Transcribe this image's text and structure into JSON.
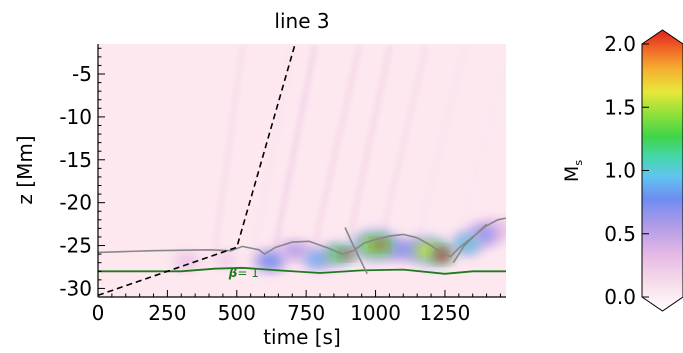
{
  "chart_data": {
    "type": "heatmap",
    "title": "line 3",
    "xlabel": "time [s]",
    "ylabel": "z [Mm]",
    "xlim": [
      0,
      1470
    ],
    "ylim": [
      -31,
      -1.5
    ],
    "xticks": [
      0,
      250,
      500,
      750,
      1000,
      1250
    ],
    "xtick_labels": [
      "0",
      "250",
      "500",
      "750",
      "1000",
      "1250"
    ],
    "yticks": [
      -5,
      -10,
      -15,
      -20,
      -25,
      -30
    ],
    "ytick_labels": [
      "-5",
      "-10",
      "-15",
      "-20",
      "-25",
      "-30"
    ],
    "colorbar": {
      "label": "M",
      "label_subscript": "s",
      "range": [
        0,
        2
      ],
      "ticks": [
        0,
        0.5,
        1,
        1.5,
        2
      ],
      "tick_labels": [
        "0.0",
        "0.5",
        "1.0",
        "1.5",
        "2.0"
      ],
      "extend": "both"
    },
    "annotations": [
      {
        "symbol": "β",
        "text": "= 1",
        "color": "#1f7a1f",
        "t": 500,
        "z": -28.1
      }
    ],
    "beta_contour": {
      "color": "#1f7a1f",
      "points": [
        [
          0,
          -28.0
        ],
        [
          300,
          -28.0
        ],
        [
          420,
          -27.7
        ],
        [
          520,
          -27.6
        ],
        [
          650,
          -27.9
        ],
        [
          800,
          -28.2
        ],
        [
          950,
          -27.9
        ],
        [
          1100,
          -27.8
        ],
        [
          1250,
          -28.3
        ],
        [
          1350,
          -28.0
        ],
        [
          1470,
          -28.0
        ]
      ]
    },
    "upper_contour": {
      "color": "#888888",
      "points": [
        [
          0,
          -25.8
        ],
        [
          200,
          -25.6
        ],
        [
          400,
          -25.5
        ],
        [
          480,
          -25.6
        ],
        [
          520,
          -25.1
        ],
        [
          580,
          -25.5
        ],
        [
          600,
          -26.0
        ],
        [
          640,
          -25.2
        ],
        [
          700,
          -24.6
        ],
        [
          760,
          -24.5
        ],
        [
          830,
          -25.3
        ],
        [
          880,
          -26.0
        ],
        [
          920,
          -25.6
        ],
        [
          960,
          -24.7
        ],
        [
          1000,
          -24.3
        ],
        [
          1050,
          -23.9
        ],
        [
          1100,
          -23.7
        ],
        [
          1150,
          -24.1
        ],
        [
          1200,
          -25.0
        ],
        [
          1240,
          -25.9
        ],
        [
          1270,
          -26.3
        ],
        [
          1300,
          -25.3
        ],
        [
          1350,
          -24.0
        ],
        [
          1400,
          -22.7
        ],
        [
          1440,
          -22.0
        ],
        [
          1470,
          -21.8
        ]
      ]
    },
    "dashed_line": {
      "points": [
        [
          0,
          -30.8
        ],
        [
          500,
          -25.2
        ],
        [
          710,
          -1.5
        ]
      ]
    },
    "gray_spikes": [
      {
        "points": [
          [
            890,
            -22.9
          ],
          [
            920,
            -25.0
          ],
          [
            970,
            -28.3
          ]
        ]
      },
      {
        "points": [
          [
            1400,
            -22.5
          ],
          [
            1320,
            -25.0
          ],
          [
            1280,
            -27.0
          ]
        ]
      }
    ],
    "hotspots": [
      {
        "t": 320,
        "z": -26.8,
        "value": 0.35,
        "rt": 40,
        "rz": 0.8
      },
      {
        "t": 460,
        "z": -26.6,
        "value": 0.3,
        "rt": 35,
        "rz": 0.8
      },
      {
        "t": 620,
        "z": -26.8,
        "value": 0.8,
        "rt": 45,
        "rz": 0.9
      },
      {
        "t": 710,
        "z": -25.6,
        "value": 0.6,
        "rt": 50,
        "rz": 0.8
      },
      {
        "t": 790,
        "z": -26.6,
        "value": 0.9,
        "rt": 40,
        "rz": 0.8
      },
      {
        "t": 860,
        "z": -26.0,
        "value": 1.3,
        "rt": 35,
        "rz": 0.8
      },
      {
        "t": 900,
        "z": -26.0,
        "value": 2.0,
        "rt": 20,
        "rz": 0.5
      },
      {
        "t": 1000,
        "z": -25.0,
        "value": 1.4,
        "rt": 60,
        "rz": 1.1
      },
      {
        "t": 1015,
        "z": -24.9,
        "value": 2.0,
        "rt": 22,
        "rz": 0.5
      },
      {
        "t": 1100,
        "z": -25.5,
        "value": 0.7,
        "rt": 55,
        "rz": 0.9
      },
      {
        "t": 1190,
        "z": -25.6,
        "value": 1.5,
        "rt": 50,
        "rz": 1.0
      },
      {
        "t": 1240,
        "z": -26.1,
        "value": 2.0,
        "rt": 30,
        "rz": 0.7
      },
      {
        "t": 1330,
        "z": -24.8,
        "value": 1.0,
        "rt": 40,
        "rz": 0.9
      },
      {
        "t": 1390,
        "z": -23.7,
        "value": 0.7,
        "rt": 45,
        "rz": 1.0
      },
      {
        "t": 1440,
        "z": -23.2,
        "value": 0.4,
        "rt": 40,
        "rz": 1.0
      }
    ],
    "streaks": [
      {
        "t0": 420,
        "z0": -26.0,
        "t1": 520,
        "z1": -2,
        "value": 0.18
      },
      {
        "t0": 560,
        "z0": -26.0,
        "t1": 700,
        "z1": -2,
        "value": 0.15
      },
      {
        "t0": 640,
        "z0": -25.0,
        "t1": 780,
        "z1": -2,
        "value": 0.22
      },
      {
        "t0": 780,
        "z0": -25.0,
        "t1": 940,
        "z1": -2,
        "value": 0.2
      },
      {
        "t0": 900,
        "z0": -25.0,
        "t1": 1050,
        "z1": -2,
        "value": 0.2
      },
      {
        "t0": 1020,
        "z0": -24.5,
        "t1": 1180,
        "z1": -2,
        "value": 0.18
      },
      {
        "t0": 1150,
        "z0": -24.5,
        "t1": 1320,
        "z1": -2,
        "value": 0.15
      },
      {
        "t0": 1300,
        "z0": -23.5,
        "t1": 1470,
        "z1": -4,
        "value": 0.14
      }
    ]
  }
}
